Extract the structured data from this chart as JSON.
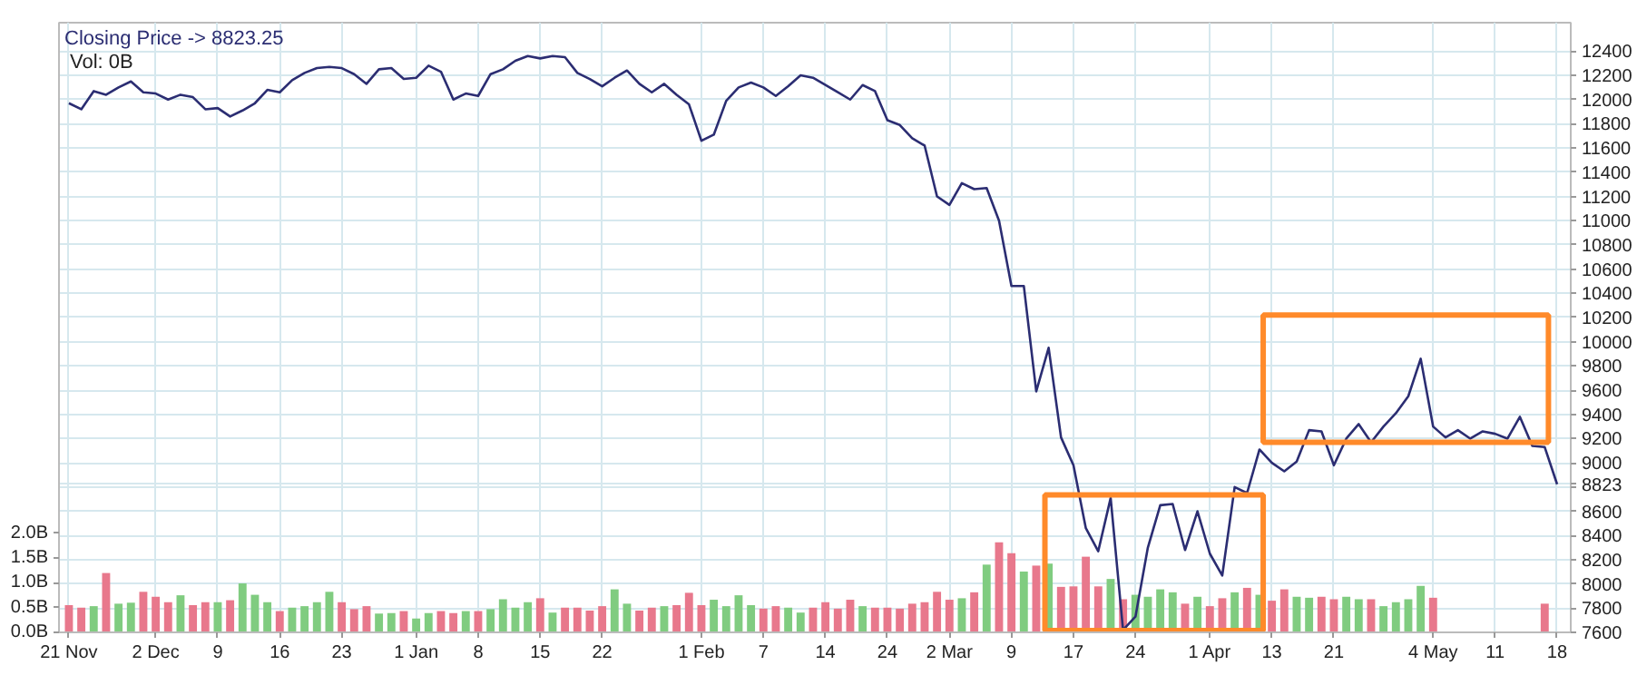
{
  "chart_data": {
    "type": "line",
    "title": "Closing Price -> 8823.25",
    "subtitle": "Vol: 0B",
    "categories": [
      "21 Nov",
      null,
      null,
      null,
      null,
      null,
      null,
      "2 Dec",
      null,
      null,
      null,
      null,
      "9",
      null,
      null,
      null,
      null,
      "16",
      null,
      null,
      null,
      null,
      "23",
      null,
      null,
      null,
      null,
      null,
      "1 Jan",
      null,
      null,
      null,
      null,
      "8",
      null,
      null,
      null,
      null,
      "15",
      null,
      null,
      null,
      null,
      "22",
      null,
      null,
      null,
      null,
      null,
      null,
      null,
      "1 Feb",
      null,
      null,
      null,
      null,
      "7",
      null,
      null,
      null,
      null,
      "14",
      null,
      null,
      null,
      null,
      "24",
      null,
      null,
      null,
      null,
      "2 Mar",
      null,
      null,
      null,
      null,
      "9",
      null,
      null,
      null,
      null,
      "17",
      null,
      null,
      null,
      null,
      "24",
      null,
      null,
      null,
      null,
      null,
      "1 Apr",
      null,
      null,
      null,
      null,
      "13",
      null,
      null,
      null,
      null,
      "21",
      null,
      null,
      null,
      null,
      null,
      null,
      null,
      "4 May",
      null,
      null,
      null,
      null,
      "11",
      null,
      null,
      null,
      null,
      "18"
    ],
    "ylim": [
      0,
      12.33
    ],
    "yticks": [
      {
        "value": 0,
        "label": "0.0B"
      },
      {
        "value": 0.5,
        "label": "0.5B"
      },
      {
        "value": 1,
        "label": "1.0B"
      },
      {
        "value": 1.5,
        "label": "1.5B"
      },
      {
        "value": 2,
        "label": "2.0B"
      }
    ],
    "y2lim": [
      7600,
      12635
    ],
    "y2ticks": [
      7600,
      7800,
      8000,
      8200,
      8400,
      8600,
      {
        "value": 8800,
        "label": null
      },
      8823,
      9000,
      9200,
      9400,
      9600,
      9800,
      10000,
      10200,
      10400,
      10600,
      10800,
      11000,
      11200,
      11400,
      11600,
      11800,
      12000,
      12200,
      12400
    ],
    "grid": true,
    "series": [
      {
        "type": "bar",
        "values": [
          0.55,
          0.5,
          0.53,
          1.2,
          0.58,
          0.6,
          0.82,
          0.72,
          0.61,
          0.75,
          0.55,
          0.61,
          0.61,
          0.65,
          0.99,
          0.76,
          0.61,
          0.43,
          0.5,
          0.53,
          0.61,
          0.82,
          0.61,
          0.47,
          0.53,
          0.38,
          0.39,
          0.43,
          0.28,
          0.39,
          0.43,
          0.39,
          0.43,
          0.43,
          0.47,
          0.67,
          0.5,
          0.61,
          0.69,
          0.4,
          0.5,
          0.5,
          0.44,
          0.53,
          0.87,
          0.58,
          0.44,
          0.5,
          0.53,
          0.55,
          0.8,
          0.55,
          0.66,
          0.53,
          0.75,
          0.55,
          0.48,
          0.53,
          0.5,
          0.4,
          0.5,
          0.61,
          0.48,
          0.66,
          0.53,
          0.5,
          0.5,
          0.48,
          0.58,
          0.61,
          0.82,
          0.66,
          0.69,
          0.81,
          1.37,
          1.82,
          1.6,
          1.23,
          1.35,
          1.39,
          0.92,
          0.93,
          1.53,
          0.93,
          1.08,
          0.67,
          0.76,
          0.72,
          0.87,
          0.81,
          0.58,
          0.72,
          0.53,
          0.69,
          0.81,
          0.9,
          0.76,
          0.64,
          0.87,
          0.72,
          0.7,
          0.72,
          0.67,
          0.72,
          0.67,
          0.67,
          0.53,
          0.61,
          0.67,
          0.94,
          0.7,
          null,
          null,
          null,
          null,
          null,
          null,
          null,
          null,
          0.58,
          null
        ],
        "colors": [
          "#e8788c",
          "#e8788c",
          "#80cc80",
          "#e8788c",
          "#80cc80",
          "#80cc80",
          "#e8788c",
          "#e8788c",
          "#e8788c",
          "#80cc80",
          "#e8788c",
          "#e8788c",
          "#80cc80",
          "#e8788c",
          "#80cc80",
          "#80cc80",
          "#80cc80",
          "#e8788c",
          "#80cc80",
          "#80cc80",
          "#80cc80",
          "#80cc80",
          "#e8788c",
          "#e8788c",
          "#e8788c",
          "#80cc80",
          "#80cc80",
          "#e8788c",
          "#80cc80",
          "#80cc80",
          "#e8788c",
          "#e8788c",
          "#80cc80",
          "#e8788c",
          "#80cc80",
          "#80cc80",
          "#80cc80",
          "#80cc80",
          "#e8788c",
          "#80cc80",
          "#e8788c",
          "#e8788c",
          "#e8788c",
          "#e8788c",
          "#80cc80",
          "#80cc80",
          "#e8788c",
          "#e8788c",
          "#80cc80",
          "#e8788c",
          "#e8788c",
          "#e8788c",
          "#80cc80",
          "#80cc80",
          "#80cc80",
          "#80cc80",
          "#e8788c",
          "#e8788c",
          "#80cc80",
          "#80cc80",
          "#e8788c",
          "#e8788c",
          "#e8788c",
          "#e8788c",
          "#80cc80",
          "#e8788c",
          "#e8788c",
          "#e8788c",
          "#e8788c",
          "#e8788c",
          "#e8788c",
          "#e8788c",
          "#80cc80",
          "#e8788c",
          "#80cc80",
          "#e8788c",
          "#e8788c",
          "#80cc80",
          "#e8788c",
          "#80cc80",
          "#e8788c",
          "#e8788c",
          "#e8788c",
          "#e8788c",
          "#80cc80",
          "#e8788c",
          "#80cc80",
          "#80cc80",
          "#80cc80",
          "#80cc80",
          "#e8788c",
          "#80cc80",
          "#e8788c",
          "#e8788c",
          "#80cc80",
          "#e8788c",
          "#80cc80",
          "#e8788c",
          "#e8788c",
          "#80cc80",
          "#80cc80",
          "#e8788c",
          "#e8788c",
          "#80cc80",
          "#80cc80",
          "#e8788c",
          "#80cc80",
          "#80cc80",
          "#80cc80",
          "#80cc80",
          "#e8788c",
          null,
          null,
          null,
          null,
          null,
          null,
          null,
          null,
          "#e8788c",
          null
        ]
      },
      {
        "axis": "y2",
        "color": "#2b2d72",
        "values": [
          11970,
          11920,
          12070,
          12040,
          12100,
          12150,
          12060,
          12050,
          12000,
          12040,
          12020,
          11920,
          11930,
          11860,
          11910,
          11970,
          12080,
          12060,
          12160,
          12220,
          12260,
          12270,
          12260,
          12210,
          12130,
          12250,
          12260,
          12170,
          12180,
          12280,
          12230,
          12000,
          12050,
          12030,
          12210,
          12250,
          12320,
          12360,
          12340,
          12360,
          12350,
          12220,
          12170,
          12110,
          12180,
          12240,
          12130,
          12060,
          12130,
          12040,
          11960,
          11660,
          11710,
          11990,
          12100,
          12140,
          12100,
          12030,
          12110,
          12200,
          12180,
          12120,
          12060,
          12000,
          12120,
          12070,
          11830,
          11790,
          11680,
          11620,
          11200,
          11130,
          11310,
          11260,
          11270,
          11000,
          10460,
          10460,
          9590,
          9950,
          9210,
          8980,
          8460,
          8270,
          8710,
          7620,
          7730,
          8300,
          8650,
          8660,
          8280,
          8600,
          8250,
          8070,
          8800,
          8750,
          9110,
          9000,
          8930,
          9010,
          9270,
          9260,
          8980,
          9200,
          9320,
          9170,
          9300,
          9410,
          9550,
          9860,
          9300,
          9210,
          9270,
          9200,
          9260,
          9240,
          9200,
          9380,
          9140,
          9130,
          8823.25
        ]
      }
    ]
  }
}
